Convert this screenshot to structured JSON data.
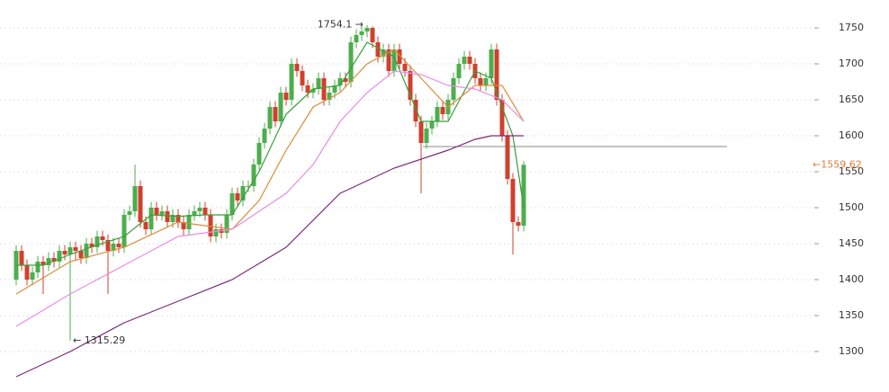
{
  "chart_data": {
    "type": "candlestick",
    "up_color": "#4cae4c",
    "down_color": "#d0402c",
    "ylim": [
      1263.75,
      1788.75
    ],
    "yticks": [
      1300,
      1350,
      1400,
      1450,
      1500,
      1550,
      1600,
      1650,
      1700,
      1750
    ],
    "grid": true,
    "open": [
      1400,
      1440,
      1420,
      1400,
      1410,
      1425,
      1420,
      1430,
      1425,
      1440,
      1435,
      1445,
      1440,
      1430,
      1450,
      1445,
      1460,
      1455,
      1440,
      1450,
      1445,
      1490,
      1495,
      1530,
      1480,
      1470,
      1500,
      1490,
      1495,
      1480,
      1490,
      1480,
      1470,
      1490,
      1495,
      1500,
      1490,
      1460,
      1470,
      1465,
      1490,
      1520,
      1510,
      1530,
      1530,
      1560,
      1590,
      1610,
      1640,
      1620,
      1660,
      1650,
      1700,
      1690,
      1670,
      1660,
      1665,
      1680,
      1650,
      1660,
      1670,
      1680,
      1675,
      1730,
      1740,
      1745,
      1750,
      1730,
      1710,
      1720,
      1690,
      1720,
      1700,
      1690,
      1650,
      1620,
      1590,
      1610,
      1620,
      1640,
      1630,
      1650,
      1680,
      1700,
      1710,
      1700,
      1680,
      1670,
      1680,
      1720,
      1650,
      1600,
      1540,
      1480,
      1475
    ],
    "high": [
      1448,
      1448,
      1428,
      1418,
      1433,
      1433,
      1438,
      1438,
      1448,
      1448,
      1453,
      1453,
      1448,
      1458,
      1458,
      1468,
      1468,
      1463,
      1458,
      1458,
      1498,
      1503,
      1560,
      1538,
      1488,
      1508,
      1508,
      1503,
      1503,
      1498,
      1498,
      1488,
      1498,
      1503,
      1508,
      1508,
      1498,
      1478,
      1478,
      1498,
      1528,
      1528,
      1538,
      1538,
      1568,
      1598,
      1618,
      1648,
      1648,
      1668,
      1668,
      1708,
      1708,
      1698,
      1678,
      1673,
      1688,
      1688,
      1668,
      1678,
      1688,
      1688,
      1738,
      1748,
      1753,
      1754.1,
      1752,
      1738,
      1728,
      1728,
      1728,
      1728,
      1708,
      1698,
      1658,
      1628,
      1618,
      1628,
      1648,
      1648,
      1658,
      1688,
      1708,
      1718,
      1718,
      1708,
      1688,
      1688,
      1728,
      1728,
      1658,
      1608,
      1548,
      1488,
      1565
    ],
    "low": [
      1392,
      1412,
      1392,
      1392,
      1402,
      1380,
      1412,
      1417,
      1417,
      1427,
      1315.29,
      1427,
      1422,
      1422,
      1437,
      1437,
      1447,
      1380,
      1432,
      1437,
      1437,
      1482,
      1487,
      1472,
      1462,
      1462,
      1482,
      1482,
      1472,
      1472,
      1472,
      1462,
      1462,
      1482,
      1487,
      1482,
      1452,
      1452,
      1457,
      1457,
      1482,
      1502,
      1502,
      1522,
      1522,
      1552,
      1582,
      1602,
      1612,
      1612,
      1642,
      1642,
      1682,
      1662,
      1652,
      1652,
      1657,
      1642,
      1642,
      1652,
      1662,
      1667,
      1667,
      1722,
      1732,
      1737,
      1722,
      1702,
      1702,
      1682,
      1682,
      1692,
      1682,
      1642,
      1612,
      1520,
      1582,
      1602,
      1612,
      1622,
      1622,
      1642,
      1672,
      1692,
      1692,
      1672,
      1662,
      1662,
      1672,
      1642,
      1592,
      1532,
      1435,
      1467,
      1467
    ],
    "close": [
      1440,
      1420,
      1400,
      1410,
      1425,
      1420,
      1430,
      1425,
      1440,
      1435,
      1445,
      1440,
      1430,
      1450,
      1445,
      1460,
      1455,
      1440,
      1450,
      1445,
      1490,
      1495,
      1530,
      1480,
      1470,
      1500,
      1490,
      1495,
      1480,
      1490,
      1480,
      1470,
      1490,
      1495,
      1500,
      1490,
      1460,
      1470,
      1465,
      1490,
      1520,
      1510,
      1530,
      1530,
      1560,
      1590,
      1610,
      1640,
      1620,
      1660,
      1650,
      1700,
      1690,
      1670,
      1660,
      1665,
      1680,
      1650,
      1660,
      1670,
      1680,
      1675,
      1730,
      1740,
      1745,
      1750,
      1730,
      1710,
      1720,
      1690,
      1720,
      1700,
      1690,
      1650,
      1620,
      1590,
      1610,
      1620,
      1640,
      1630,
      1650,
      1680,
      1700,
      1710,
      1700,
      1680,
      1670,
      1680,
      1720,
      1650,
      1600,
      1540,
      1480,
      1475,
      1559.62
    ],
    "lines": [
      {
        "color": "#3a9e3a",
        "x": [
          0,
          5,
          10,
          15,
          20,
          25,
          30,
          35,
          40,
          45,
          50,
          55,
          60,
          65,
          70,
          75,
          80,
          85,
          88,
          92,
          94
        ],
        "values": [
          1420,
          1420,
          1435,
          1448,
          1460,
          1490,
          1488,
          1490,
          1490,
          1550,
          1630,
          1665,
          1670,
          1730,
          1710,
          1620,
          1620,
          1690,
          1680,
          1600,
          1500
        ]
      },
      {
        "color": "#d98c3a",
        "x": [
          0,
          10,
          20,
          30,
          40,
          45,
          50,
          55,
          60,
          65,
          70,
          75,
          80,
          85,
          90,
          94
        ],
        "values": [
          1380,
          1425,
          1445,
          1480,
          1470,
          1510,
          1580,
          1640,
          1660,
          1700,
          1720,
          1680,
          1640,
          1670,
          1670,
          1620
        ]
      },
      {
        "color": "#e58ee5",
        "x": [
          0,
          10,
          20,
          30,
          40,
          50,
          55,
          60,
          65,
          70,
          75,
          80,
          85,
          90,
          94
        ],
        "values": [
          1335,
          1380,
          1420,
          1460,
          1470,
          1520,
          1560,
          1620,
          1660,
          1690,
          1685,
          1670,
          1665,
          1650,
          1620
        ]
      },
      {
        "color": "#7a2a7a",
        "x": [
          0,
          10,
          20,
          30,
          40,
          50,
          60,
          70,
          80,
          85,
          88,
          90,
          94
        ],
        "values": [
          1265,
          1300,
          1340,
          1370,
          1400,
          1445,
          1520,
          1555,
          1580,
          1595,
          1600,
          1600,
          1600
        ]
      }
    ],
    "hline": 1585,
    "max_label": "1754.1 →",
    "min_label": "← 1315.29",
    "last_label": "←1559.62"
  }
}
